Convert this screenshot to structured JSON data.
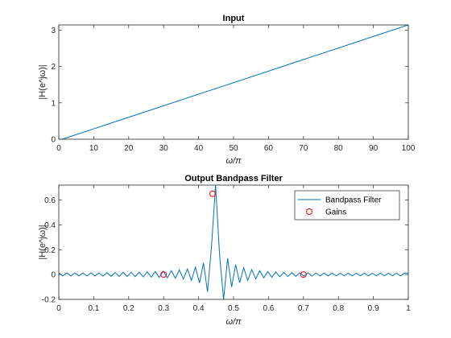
{
  "chart_data": [
    {
      "type": "line",
      "title": "Input",
      "xlabel": "ω/π",
      "ylabel": "|H(e^jω)|",
      "xlim": [
        0,
        100
      ],
      "ylim": [
        0,
        3.14159
      ],
      "xticks": [
        0,
        10,
        20,
        30,
        40,
        50,
        60,
        70,
        80,
        90,
        100
      ],
      "xtick_labels": [
        "0",
        "10",
        "20",
        "30",
        "40",
        "50",
        "60",
        "70",
        "80",
        "90",
        "100"
      ],
      "yticks": [
        0,
        1,
        2,
        3
      ],
      "ytick_labels": [
        "0",
        "1",
        "2",
        "3"
      ],
      "grid": false,
      "series": [
        {
          "x": [
            1,
            100
          ],
          "y": [
            0,
            3.14159
          ],
          "color": "#0072BD"
        }
      ]
    },
    {
      "type": "line",
      "title": "Output Bandpass Filter",
      "xlabel": "ω/π",
      "ylabel": "|H(e^jω)|",
      "xlim": [
        0,
        1
      ],
      "ylim": [
        -0.2,
        0.72
      ],
      "xticks": [
        0,
        0.1,
        0.2,
        0.3,
        0.4,
        0.5,
        0.6,
        0.7,
        0.8,
        0.9,
        1
      ],
      "xtick_labels": [
        "0",
        "0.1",
        "0.2",
        "0.3",
        "0.4",
        "0.5",
        "0.6",
        "0.7",
        "0.8",
        "0.9",
        "1"
      ],
      "yticks": [
        -0.2,
        0,
        0.2,
        0.4,
        0.6
      ],
      "ytick_labels": [
        "-0.2",
        "0",
        "0.2",
        "0.4",
        "0.6"
      ],
      "grid": false,
      "legend": {
        "position": "top-right",
        "entries": [
          "Bandpass Filter",
          "Gains"
        ]
      },
      "series": [
        {
          "name": "Bandpass Filter",
          "kind": "line",
          "color": "#0072BD",
          "x": [
            0,
            0.0115,
            0.023,
            0.0345,
            0.046,
            0.0575,
            0.069,
            0.0805,
            0.092,
            0.1035,
            0.115,
            0.1265,
            0.138,
            0.1495,
            0.161,
            0.1725,
            0.184,
            0.1955,
            0.207,
            0.2185,
            0.23,
            0.2415,
            0.253,
            0.2645,
            0.276,
            0.2875,
            0.299,
            0.3105,
            0.322,
            0.3335,
            0.345,
            0.3565,
            0.368,
            0.3795,
            0.391,
            0.4025,
            0.414,
            0.4255,
            0.437,
            0.4485,
            0.46,
            0.4715,
            0.483,
            0.4945,
            0.506,
            0.5175,
            0.529,
            0.5405,
            0.552,
            0.5635,
            0.575,
            0.5865,
            0.598,
            0.6095,
            0.621,
            0.6325,
            0.644,
            0.6555,
            0.667,
            0.6785,
            0.69,
            0.7015,
            0.713,
            0.7245,
            0.736,
            0.7475,
            0.759,
            0.7705,
            0.782,
            0.7935,
            0.805,
            0.8165,
            0.828,
            0.8395,
            0.851,
            0.8625,
            0.874,
            0.8855,
            0.897,
            0.9085,
            0.92,
            0.9315,
            0.943,
            0.9545,
            0.966,
            0.9775,
            0.989,
            1.0
          ],
          "y": [
            0.012,
            -0.011,
            0.014,
            -0.012,
            0.013,
            -0.011,
            0.013,
            -0.012,
            0.014,
            -0.012,
            0.014,
            -0.013,
            0.015,
            -0.014,
            0.016,
            -0.015,
            0.018,
            -0.016,
            0.019,
            -0.017,
            0.02,
            -0.019,
            0.022,
            -0.021,
            0.024,
            -0.023,
            0.027,
            -0.026,
            0.031,
            -0.03,
            0.037,
            -0.036,
            0.045,
            -0.047,
            0.06,
            -0.068,
            0.093,
            -0.14,
            0.23,
            0.72,
            0.16,
            -0.2,
            0.13,
            -0.1,
            0.08,
            -0.066,
            0.055,
            -0.047,
            0.04,
            -0.035,
            0.031,
            -0.027,
            0.024,
            -0.022,
            0.02,
            -0.018,
            0.017,
            -0.016,
            0.015,
            -0.014,
            0.014,
            -0.013,
            0.013,
            -0.012,
            0.012,
            -0.012,
            0.012,
            -0.011,
            0.011,
            -0.011,
            0.011,
            -0.011,
            0.011,
            -0.011,
            0.011,
            -0.011,
            0.011,
            -0.011,
            0.011,
            -0.011,
            0.011,
            -0.011,
            0.011,
            -0.011,
            0.011,
            -0.011,
            0.011,
            0.011
          ]
        },
        {
          "name": "Gains",
          "kind": "marker",
          "marker": "circle",
          "color": "#FF0000",
          "x": [
            0.3,
            0.44,
            0.7
          ],
          "y": [
            0,
            0.65,
            0
          ]
        }
      ]
    }
  ]
}
